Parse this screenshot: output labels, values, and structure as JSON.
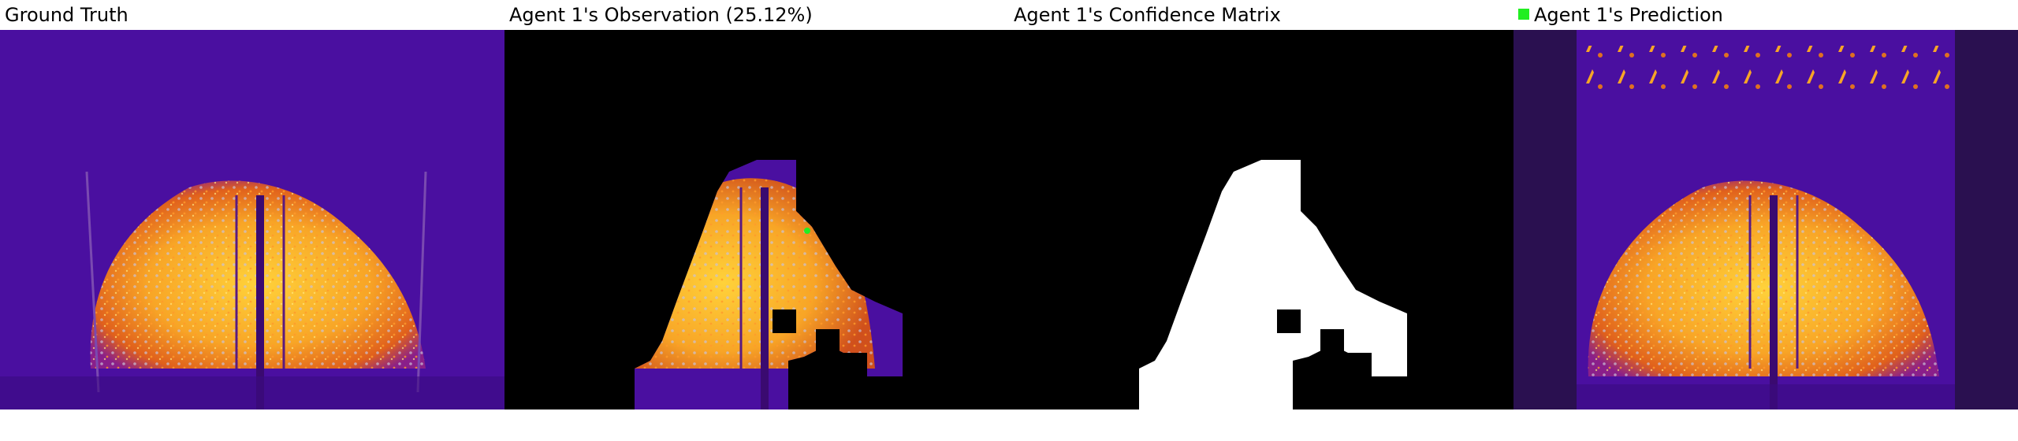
{
  "panels": [
    {
      "title": "Ground Truth"
    },
    {
      "title": "Agent 1's Observation (25.12%)"
    },
    {
      "title": "Agent 1's Confidence Matrix"
    },
    {
      "title": "Agent 1's Prediction",
      "legend_color": "#22ee22"
    }
  ],
  "colors": {
    "background_purple": "#4a0fa0",
    "fire_orange": "#f07a18",
    "fire_yellow": "#ffd23a",
    "fire_white": "#c9c2d8",
    "mask_black": "#000000",
    "mask_white": "#ffffff"
  }
}
